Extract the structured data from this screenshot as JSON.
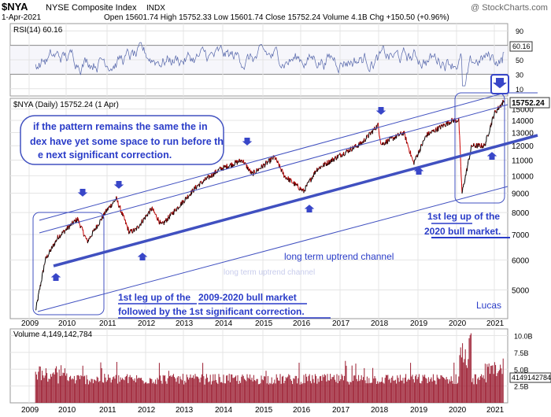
{
  "header": {
    "symbol": "$NYA",
    "name": "NYSE Composite Index",
    "exchange": "INDX",
    "date": "1-Apr-2021",
    "quote": "Open 15601.74  High 15752.33  Low 15601.74  Close 15752.24  Volume 4.1B  Chg +150.50 (+0.96%)",
    "watermark": "@ StockCharts.com"
  },
  "rsi_panel": {
    "label": "RSI(14) 60.16",
    "value_badge": "60.16",
    "ticks": [
      "90",
      "70",
      "50",
      "30",
      "10"
    ]
  },
  "price_panel": {
    "label": "$NYA (Daily) 15752.24 (1 Apr)",
    "last_badge": "15752.24",
    "ticks": [
      "15000",
      "14000",
      "13000",
      "12000",
      "11000",
      "10000",
      "9000",
      "8000",
      "7000",
      "6000",
      "5000"
    ]
  },
  "volume_panel": {
    "label": "Volume 4,149,142,784",
    "last_badge": "4149142784",
    "ticks": [
      "10.0B",
      "7.5B",
      "5.0B",
      "2.5B"
    ]
  },
  "x_axis": {
    "labels": [
      "2009",
      "2010",
      "2011",
      "2012",
      "2013",
      "2014",
      "2015",
      "2016",
      "2017",
      "2018",
      "2019",
      "2020",
      "2021"
    ]
  },
  "annotations": {
    "callout": "if the pattern remains the same the index have yet some space to run before the next significant correction.",
    "leg_2020_line1": "1st leg up of the",
    "leg_2020_line2": "2020 bull market.",
    "channel": "long term uptrend channel",
    "channel_shadow": "long term uptrend channel",
    "leg_2009_a": "1st leg up of the",
    "leg_2009_b": "2009-2020 bull market",
    "leg_2009_c": "followed by the 1st   significant  correction.",
    "author": "Lucas"
  },
  "colors": {
    "price_up": "#000000",
    "price_down": "#cc0000",
    "trend": "#4050c0",
    "rsi_line": "#5566aa",
    "volume": "#9b1c30",
    "annotation_text": "#2a3cc8"
  },
  "chart_data": [
    {
      "type": "line",
      "title": "RSI(14) 60.16",
      "ylim": [
        0,
        100
      ],
      "y_ticks": [
        90,
        70,
        50,
        30,
        10
      ],
      "series": [
        {
          "name": "RSI(14)",
          "last": 60.16
        }
      ]
    },
    {
      "type": "line",
      "title": "$NYA (Daily) 15752.24 (1 Apr)",
      "log_scale": true,
      "ylim": [
        4200,
        16000
      ],
      "x": [
        "2009-03",
        "2009-06",
        "2009-10",
        "2010-04",
        "2010-07",
        "2011-01",
        "2011-04",
        "2011-08",
        "2011-10",
        "2012-03",
        "2012-06",
        "2013-05",
        "2013-12",
        "2014-07",
        "2014-10",
        "2015-05",
        "2015-08",
        "2016-02",
        "2016-06",
        "2017-01",
        "2017-08",
        "2018-01",
        "2018-02",
        "2018-09",
        "2018-12",
        "2019-04",
        "2019-12",
        "2020-02",
        "2020-03",
        "2020-06",
        "2020-10",
        "2021-01",
        "2021-04"
      ],
      "series": [
        {
          "name": "$NYA",
          "values": [
            4400,
            6000,
            6900,
            7700,
            6700,
            8100,
            8700,
            7100,
            7200,
            8200,
            7400,
            9400,
            10400,
            11000,
            10100,
            11200,
            10000,
            9100,
            10400,
            11300,
            12200,
            13600,
            12100,
            13000,
            10800,
            12800,
            14000,
            14000,
            9000,
            12000,
            12000,
            14600,
            15752.24
          ]
        }
      ],
      "annotations": [
        "if the pattern remains the same the index have yet some space to run before the next significant correction.",
        "1st leg up of the 2020 bull market.",
        "long term uptrend channel",
        "1st leg up of the 2009-2020 bull market followed by the 1st significant correction.",
        "Lucas"
      ]
    },
    {
      "type": "bar",
      "title": "Volume 4,149,142,784",
      "ylim": [
        0,
        11000000000
      ],
      "y_ticks": [
        "10.0B",
        "7.5B",
        "5.0B",
        "2.5B"
      ],
      "last_value": 4149142784
    }
  ]
}
